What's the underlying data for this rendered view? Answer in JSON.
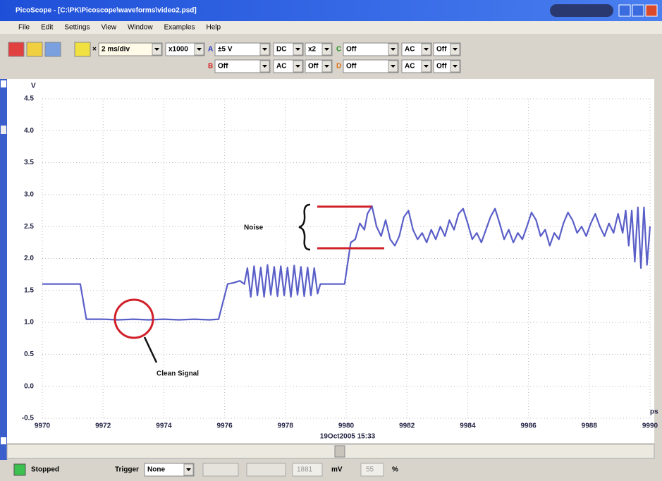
{
  "window": {
    "title": "PicoScope - [C:\\PK\\Picoscope\\waveforms\\video2.psd]",
    "menu": [
      "File",
      "Edit",
      "Settings",
      "View",
      "Window",
      "Examples",
      "Help"
    ]
  },
  "toolbar": {
    "timebase": "2 ms/div",
    "zoom": "x1000",
    "channels": [
      {
        "id": "A",
        "range": "±5 V",
        "coupling": "DC",
        "gain": "x2"
      },
      {
        "id": "B",
        "range": "Off",
        "coupling": "AC",
        "gain": "Off"
      },
      {
        "id": "C",
        "range": "Off",
        "coupling": "AC",
        "gain": "Off"
      },
      {
        "id": "D",
        "range": "Off",
        "coupling": "AC",
        "gain": "Off"
      }
    ]
  },
  "status": {
    "state": "Stopped",
    "trigger_label": "Trigger",
    "trigger": "None",
    "level": "1881",
    "level_unit": "mV",
    "delay": "55",
    "delay_unit": "%"
  },
  "chart_data": {
    "type": "line",
    "color": "#5a5fc8",
    "yunit": "V",
    "xunit": "ps",
    "timestamp": "19Oct2005 15:33",
    "annotations": [
      "Noise",
      "Clean Signal"
    ],
    "grid": true,
    "xlim": [
      9970,
      9990
    ],
    "xticks": [
      9970,
      9972,
      9974,
      9976,
      9978,
      9980,
      9982,
      9984,
      9986,
      9988,
      9990
    ],
    "ylim": [
      -0.5,
      4.5
    ],
    "yticks": [
      -0.5,
      {
        "value": 0,
        "label": "0.0"
      },
      0.5,
      {
        "value": 1,
        "label": "1.0"
      },
      1.5,
      {
        "value": 2,
        "label": "2.0"
      },
      2.5,
      {
        "value": 3,
        "label": "3.0"
      },
      3.5,
      {
        "value": 4,
        "label": "4.0"
      },
      4.5
    ],
    "x": [
      9970,
      9970.6,
      9971.25,
      9971.45,
      9972.0,
      9972.5,
      9973.0,
      9973.5,
      9974.0,
      9974.5,
      9975.0,
      9975.5,
      9975.8,
      9976.1,
      9976.3,
      9976.5,
      9976.65,
      9976.75,
      9976.86,
      9976.97,
      9977.08,
      9977.19,
      9977.3,
      9977.41,
      9977.52,
      9977.63,
      9977.74,
      9977.85,
      9977.96,
      9978.07,
      9978.18,
      9978.29,
      9978.4,
      9978.51,
      9978.62,
      9978.73,
      9978.84,
      9978.95,
      9979.06,
      9979.15,
      9979.95,
      9980.15,
      9980.3,
      9980.45,
      9980.6,
      9980.7,
      9980.85,
      9981.0,
      9981.15,
      9981.3,
      9981.45,
      9981.6,
      9981.75,
      9981.9,
      9982.05,
      9982.2,
      9982.35,
      9982.5,
      9982.65,
      9982.8,
      9982.95,
      9983.1,
      9983.25,
      9983.4,
      9983.55,
      9983.7,
      9983.85,
      9984.0,
      9984.15,
      9984.3,
      9984.45,
      9984.6,
      9984.75,
      9984.9,
      9985.05,
      9985.2,
      9985.35,
      9985.5,
      9985.65,
      9985.8,
      9985.95,
      9986.1,
      9986.25,
      9986.4,
      9986.55,
      9986.7,
      9986.85,
      9987.0,
      9987.15,
      9987.3,
      9987.45,
      9987.6,
      9987.75,
      9987.9,
      9988.05,
      9988.2,
      9988.35,
      9988.5,
      9988.65,
      9988.8,
      9988.95,
      9989.1,
      9989.2,
      9989.3,
      9989.4,
      9989.5,
      9989.6,
      9989.7,
      9989.8,
      9989.9,
      9990.0
    ],
    "values": [
      1.6,
      1.6,
      1.6,
      1.05,
      1.05,
      1.04,
      1.05,
      1.04,
      1.05,
      1.04,
      1.05,
      1.04,
      1.05,
      1.6,
      1.62,
      1.65,
      1.6,
      1.85,
      1.4,
      1.88,
      1.42,
      1.86,
      1.4,
      1.9,
      1.43,
      1.87,
      1.41,
      1.88,
      1.42,
      1.86,
      1.4,
      1.89,
      1.43,
      1.87,
      1.41,
      1.86,
      1.42,
      1.85,
      1.45,
      1.6,
      1.6,
      2.25,
      2.3,
      2.55,
      2.45,
      2.7,
      2.82,
      2.5,
      2.35,
      2.6,
      2.3,
      2.2,
      2.35,
      2.65,
      2.75,
      2.45,
      2.3,
      2.4,
      2.25,
      2.45,
      2.3,
      2.5,
      2.35,
      2.6,
      2.45,
      2.7,
      2.78,
      2.55,
      2.3,
      2.4,
      2.25,
      2.45,
      2.65,
      2.78,
      2.55,
      2.3,
      2.45,
      2.25,
      2.4,
      2.3,
      2.5,
      2.72,
      2.6,
      2.35,
      2.45,
      2.2,
      2.4,
      2.3,
      2.55,
      2.72,
      2.6,
      2.4,
      2.5,
      2.35,
      2.55,
      2.7,
      2.5,
      2.35,
      2.55,
      2.4,
      2.7,
      2.4,
      2.75,
      2.2,
      2.75,
      1.95,
      2.8,
      1.85,
      2.8,
      1.9,
      2.5
    ]
  }
}
